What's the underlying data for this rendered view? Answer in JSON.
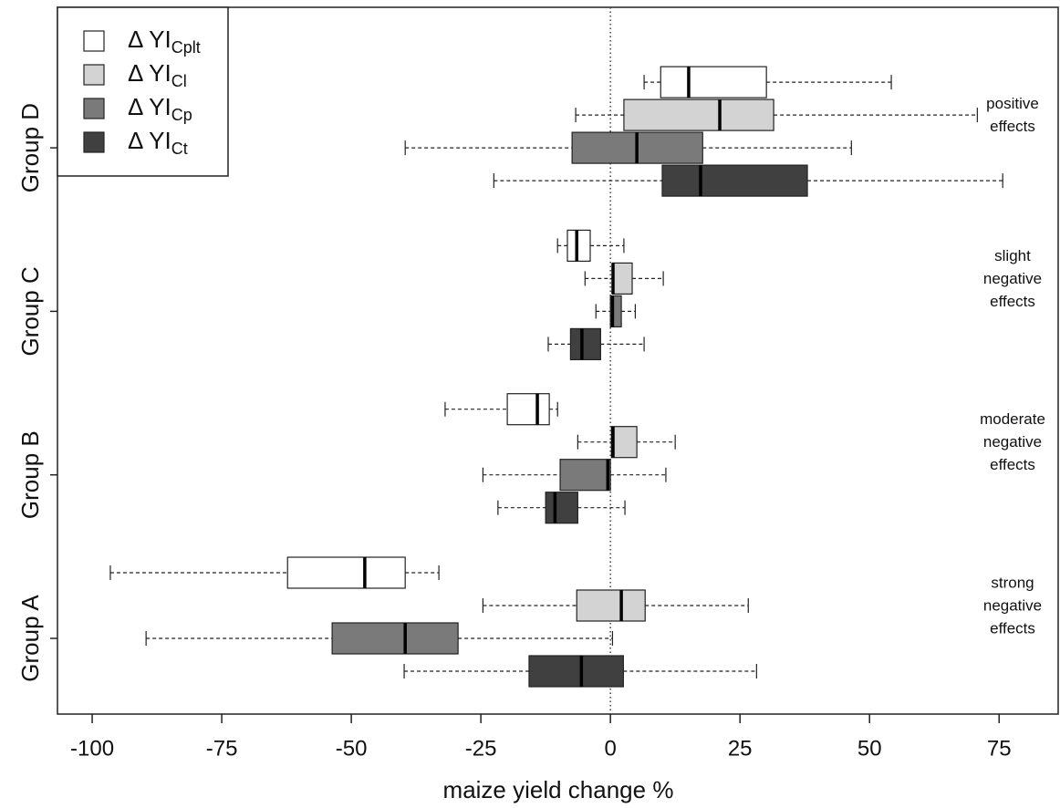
{
  "chart_data": {
    "type": "boxplot",
    "orientation": "horizontal",
    "x_label": "maize yield change %",
    "categories": [
      "Group A",
      "Group B",
      "Group C",
      "Group D"
    ],
    "xlim": [
      -106.7,
      86.4
    ],
    "xticks": [
      -100,
      -75,
      -50,
      -25,
      0,
      25,
      50,
      75
    ],
    "reference_line": 0,
    "series": [
      {
        "name": "Δ YI",
        "subscript": "Cplt",
        "color": "#ffffff",
        "min": [
          -96.5,
          -31.9,
          -10.2,
          6.5
        ],
        "q1": [
          -62.3,
          -19.9,
          -8.3,
          9.7
        ],
        "median": [
          -47.4,
          -14.1,
          -6.5,
          15.1
        ],
        "q3": [
          -39.6,
          -11.8,
          -3.9,
          30.1
        ],
        "max": [
          -33.1,
          -10.2,
          2.6,
          54.2
        ]
      },
      {
        "name": "Δ YI",
        "subscript": "Cl",
        "color": "#d3d3d3",
        "min": [
          -24.6,
          -6.3,
          -4.9,
          -6.7
        ],
        "q1": [
          -6.5,
          0.2,
          0.4,
          2.6
        ],
        "median": [
          2.1,
          0.5,
          0.5,
          21.1
        ],
        "q3": [
          6.7,
          5.1,
          4.2,
          31.5
        ],
        "max": [
          26.6,
          12.5,
          10.2,
          70.8
        ]
      },
      {
        "name": "Δ YI",
        "subscript": "Cp",
        "color": "#7a7a7a",
        "min": [
          -89.6,
          -24.6,
          -2.8,
          -39.6
        ],
        "q1": [
          -53.7,
          -9.7,
          0,
          -7.4
        ],
        "median": [
          -39.6,
          -0.5,
          0.4,
          5.1
        ],
        "q3": [
          -29.4,
          0,
          2.1,
          17.8
        ],
        "max": [
          0.4,
          10.7,
          4.8,
          46.5
        ]
      },
      {
        "name": "Δ YI",
        "subscript": "Ct",
        "color": "#404040",
        "min": [
          -39.8,
          -21.7,
          -12,
          -22.5
        ],
        "q1": [
          -15.7,
          -12.5,
          -7.7,
          10
        ],
        "median": [
          -5.6,
          -10.7,
          -5.5,
          17.4
        ],
        "q3": [
          2.5,
          -6.3,
          -1.9,
          38
        ],
        "max": [
          28.2,
          2.8,
          6.5,
          75.7
        ]
      }
    ],
    "annotations": [
      [
        "strong",
        "negative",
        "effects"
      ],
      [
        "moderate",
        "negative",
        "effects"
      ],
      [
        "slight",
        "negative",
        "effects"
      ],
      [
        "positive",
        "effects"
      ]
    ],
    "legend": "top-left"
  }
}
